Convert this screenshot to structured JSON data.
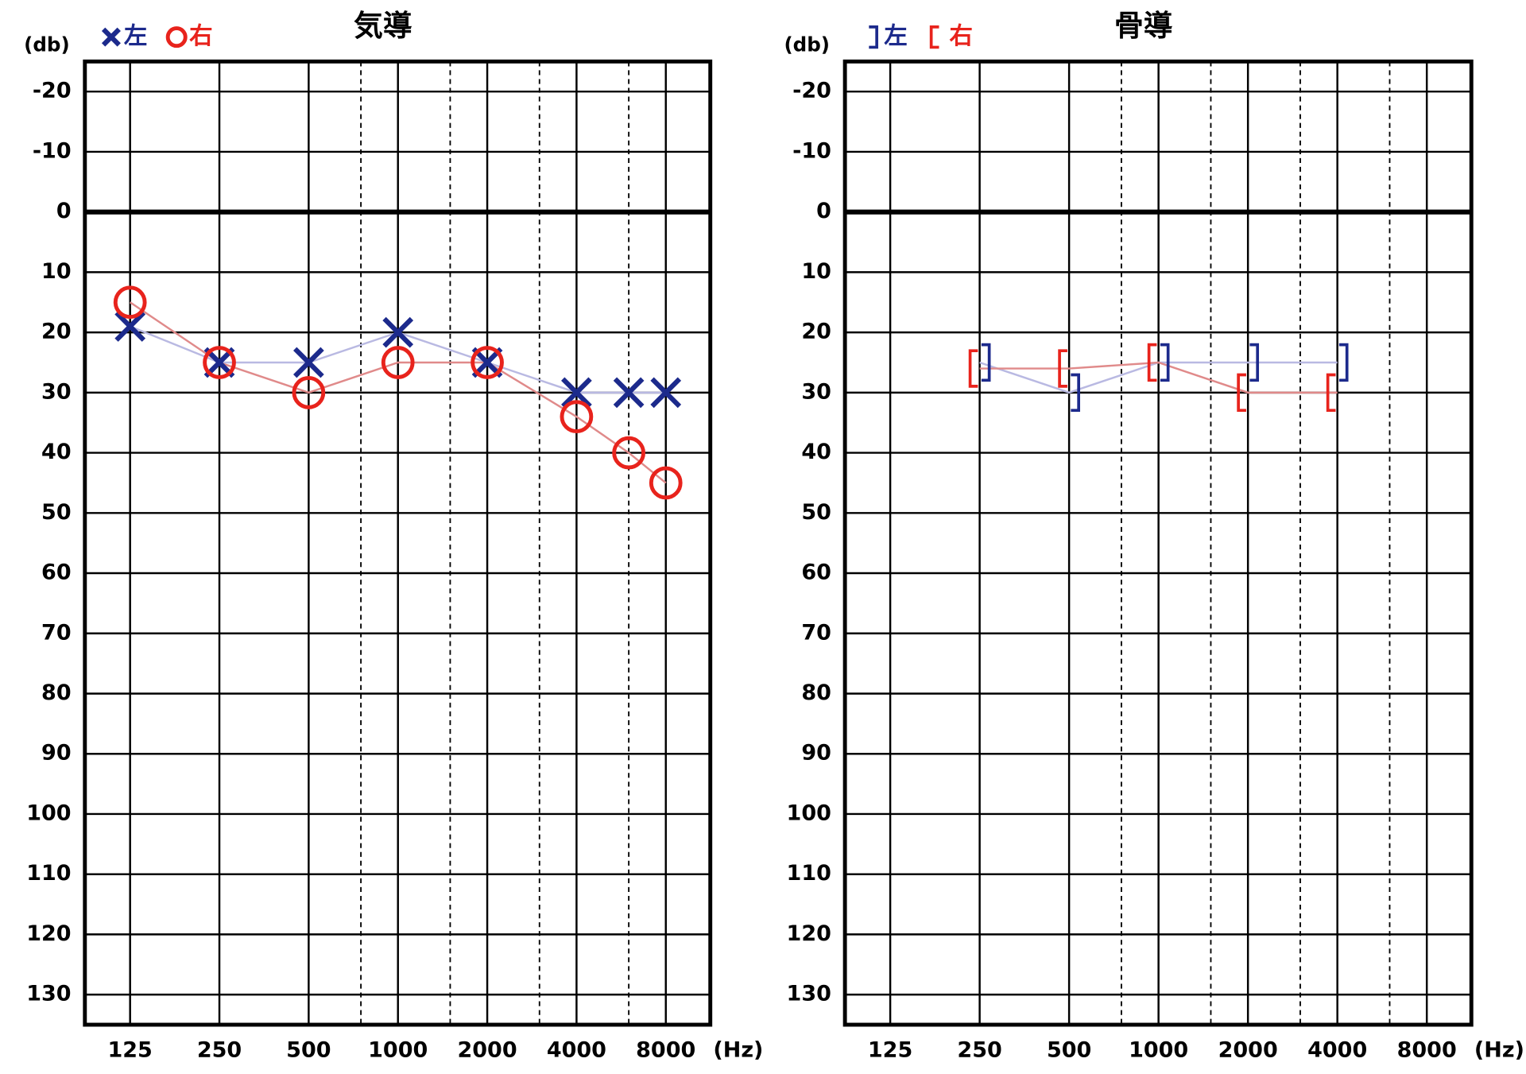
{
  "chart_data": [
    {
      "type": "line",
      "title": "気導",
      "y_label": "(db)",
      "x_label": "(Hz)",
      "x": [
        125,
        250,
        500,
        1000,
        2000,
        4000,
        6000,
        8000
      ],
      "x_log": true,
      "xlim": [
        88,
        11300
      ],
      "xticks": [
        125,
        250,
        500,
        1000,
        2000,
        4000,
        8000
      ],
      "x_minor_ticks": [
        750,
        1500,
        3000,
        6000
      ],
      "ylim": [
        -25,
        135
      ],
      "y_inverted": true,
      "yticks": [
        -20,
        -10,
        0,
        10,
        20,
        30,
        40,
        50,
        60,
        70,
        80,
        90,
        100,
        110,
        120,
        130
      ],
      "grid": true,
      "legend": "top-left",
      "series": [
        {
          "name": "左",
          "color": "#1c2a8c",
          "line_color": "#b9b9e2",
          "marker": "x",
          "values": [
            19,
            25,
            25,
            20,
            25,
            30,
            30,
            30
          ]
        },
        {
          "name": "右",
          "color": "#e8231c",
          "line_color": "#e08a8a",
          "marker": "o",
          "values": [
            15,
            25,
            30,
            25,
            25,
            34,
            40,
            45
          ]
        }
      ]
    },
    {
      "type": "line",
      "title": "骨導",
      "y_label": "(db)",
      "x_label": "(Hz)",
      "x": [
        250,
        500,
        1000,
        2000,
        4000
      ],
      "x_log": true,
      "xlim": [
        88,
        11300
      ],
      "xticks": [
        125,
        250,
        500,
        1000,
        2000,
        4000,
        8000
      ],
      "x_minor_ticks": [
        750,
        1500,
        3000,
        6000
      ],
      "ylim": [
        -25,
        135
      ],
      "y_inverted": true,
      "yticks": [
        -20,
        -10,
        0,
        10,
        20,
        30,
        40,
        50,
        60,
        70,
        80,
        90,
        100,
        110,
        120,
        130
      ],
      "grid": true,
      "legend": "top-left",
      "series": [
        {
          "name": "左",
          "color": "#1c2a8c",
          "line_color": "#b9b9e2",
          "marker": "]",
          "values": [
            25,
            30,
            25,
            25,
            25
          ]
        },
        {
          "name": "右",
          "color": "#e8231c",
          "line_color": "#e08a8a",
          "marker": "[",
          "values": [
            26,
            26,
            25,
            30,
            30
          ]
        }
      ]
    }
  ]
}
